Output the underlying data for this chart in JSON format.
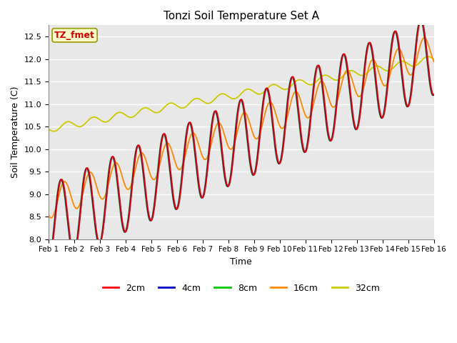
{
  "title": "Tonzi Soil Temperature Set A",
  "xlabel": "Time",
  "ylabel": "Soil Temperature (C)",
  "annotation": "TZ_fmet",
  "annotation_color": "#cc0000",
  "annotation_bg": "#ffffcc",
  "ylim": [
    8.0,
    12.75
  ],
  "yticks": [
    8.0,
    8.5,
    9.0,
    9.5,
    10.0,
    10.5,
    11.0,
    11.5,
    12.0,
    12.5
  ],
  "xtick_labels": [
    "Feb 1",
    "Feb 2",
    "Feb 3",
    "Feb 4",
    "Feb 5",
    "Feb 6",
    "Feb 7",
    "Feb 8",
    "Feb 9",
    "Feb 10",
    "Feb 11",
    "Feb 12",
    "Feb 13",
    "Feb 14",
    "Feb 15",
    "Feb 16"
  ],
  "background_color": "#e8e8e8",
  "grid_color": "#ffffff",
  "legend_labels": [
    "2cm",
    "4cm",
    "8cm",
    "16cm",
    "32cm"
  ],
  "series_colors": [
    "#ff0000",
    "#0000cc",
    "#00cc00",
    "#ff8800",
    "#cccc00"
  ]
}
